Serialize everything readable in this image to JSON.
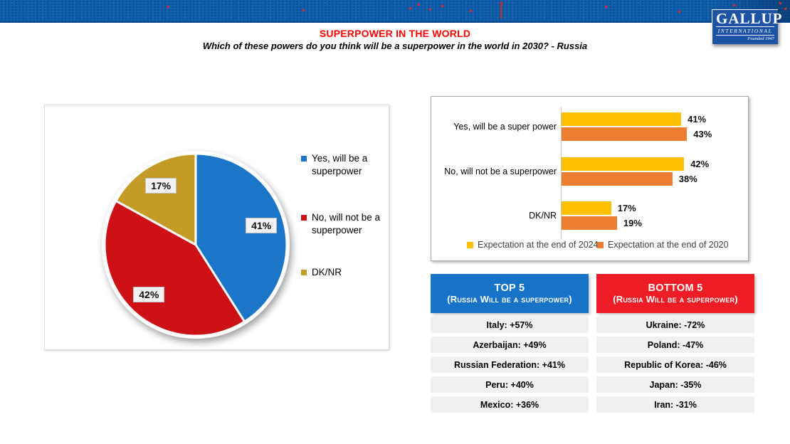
{
  "logo": {
    "name": "GALLUP",
    "subname": "INTERNATIONAL",
    "tagline": "Founded 1947"
  },
  "header": {
    "title": "SUPERPOWER IN THE WORLD",
    "title_color": "#FF0000",
    "subtitle": "Which of these powers do you think will be a superpower in the world in 2030? - Russia"
  },
  "pie": {
    "slices": [
      {
        "label": "Yes, will be a superpower",
        "value": 41,
        "color": "#1B75C8"
      },
      {
        "label": "No, will not be a superpower",
        "value": 42,
        "color": "#CE1117"
      },
      {
        "label": "DK/NR",
        "value": 17,
        "color": "#C49B27"
      }
    ]
  },
  "bars": {
    "categories": [
      "Yes, will be a super power",
      "No, will not be a superpower",
      "DK/NR"
    ],
    "series": [
      {
        "name": "Expectation at the end of 2024",
        "color": "#FFC000",
        "values": [
          41,
          42,
          17
        ]
      },
      {
        "name": "Expectation at the end of 2020",
        "color": "#ED7D31",
        "values": [
          43,
          38,
          19
        ]
      }
    ]
  },
  "top5": {
    "title": "TOP 5",
    "subtitle": "(Russia Will be a superpower)",
    "header_color": "#1673C8",
    "rows": [
      "Italy: +57%",
      "Azerbaijan: +49%",
      "Russian Federation: +41%",
      "Peru: +40%",
      "Mexico: +36%"
    ]
  },
  "bottom5": {
    "title": "BOTTOM 5",
    "subtitle": "(Russia Will be a superpower)",
    "header_color": "#EE1C24",
    "rows": [
      "Ukraine: -72%",
      "Poland: -47%",
      "Republic of Korea: -46%",
      "Japan: -35%",
      "Iran: -31%"
    ]
  },
  "chart_data": [
    {
      "type": "pie",
      "title": "Which of these powers do you think will be a superpower in the world in 2030? - Russia",
      "labels": [
        "Yes, will be a superpower",
        "No, will not be a superpower",
        "DK/NR"
      ],
      "values": [
        41,
        42,
        17
      ],
      "colors": [
        "#1B75C8",
        "#CE1117",
        "#C49B27"
      ],
      "legend_position": "right",
      "start_angle": "top",
      "direction": "clockwise"
    },
    {
      "type": "bar",
      "orientation": "horizontal",
      "categories": [
        "Yes, will be a super power",
        "No, will not be a superpower",
        "DK/NR"
      ],
      "series": [
        {
          "name": "Expectation at the end of 2024",
          "values": [
            41,
            42,
            17
          ],
          "color": "#FFC000"
        },
        {
          "name": "Expectation at the end of 2020",
          "values": [
            43,
            38,
            19
          ],
          "color": "#ED7D31"
        }
      ],
      "xlim": [
        0,
        50
      ],
      "grid": false,
      "legend_position": "bottom",
      "data_labels": [
        "41%",
        "43%",
        "42%",
        "38%",
        "17%",
        "19%"
      ]
    },
    {
      "type": "table",
      "title": "TOP 5 (Russia Will be a superpower)",
      "rows": [
        [
          "Italy",
          "+57%"
        ],
        [
          "Azerbaijan",
          "+49%"
        ],
        [
          "Russian Federation",
          "+41%"
        ],
        [
          "Peru",
          "+40%"
        ],
        [
          "Mexico",
          "+36%"
        ]
      ]
    },
    {
      "type": "table",
      "title": "BOTTOM 5 (Russia Will be a superpower)",
      "rows": [
        [
          "Ukraine",
          "-72%"
        ],
        [
          "Poland",
          "-47%"
        ],
        [
          "Republic of Korea",
          "-46%"
        ],
        [
          "Japan",
          "-35%"
        ],
        [
          "Iran",
          "-31%"
        ]
      ]
    }
  ]
}
